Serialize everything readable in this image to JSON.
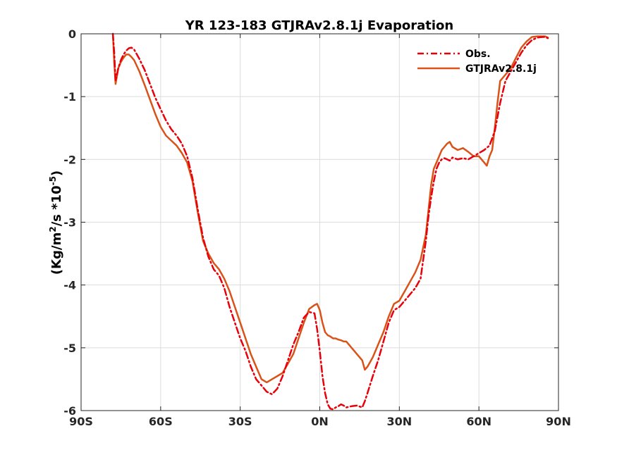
{
  "chart_data": {
    "type": "line",
    "title": "YR 123-183 GTJRAv2.8.1j Evaporation",
    "ylabel": {
      "prefix": "(Kg/m",
      "sup1": "2",
      "middle": "/s *10",
      "sup2": "-5",
      "suffix": ")"
    },
    "xlabel": "",
    "xlim": [
      -90,
      90
    ],
    "ylim": [
      -6,
      0
    ],
    "xticks": [
      -90,
      -60,
      -30,
      0,
      30,
      60,
      90
    ],
    "xtick_labels": [
      "90S",
      "60S",
      "30S",
      "0N",
      "30N",
      "60N",
      "90N"
    ],
    "yticks": [
      0,
      -1,
      -2,
      -3,
      -4,
      -5,
      -6
    ],
    "ytick_labels": [
      "0",
      "-1",
      "-2",
      "-3",
      "-4",
      "-5",
      "-6"
    ],
    "grid": true,
    "legend_position": "top-right",
    "series": [
      {
        "name": "Obs.",
        "color": "#e8000b",
        "style": "dash-dot",
        "x": [
          -78,
          -77.5,
          -77,
          -76,
          -75,
          -74,
          -73,
          -72,
          -71,
          -70,
          -68,
          -66,
          -64,
          -62,
          -60,
          -58,
          -56,
          -54,
          -52,
          -50,
          -48,
          -46,
          -44,
          -42,
          -40,
          -38,
          -36,
          -34,
          -32,
          -30,
          -28,
          -26,
          -24,
          -22,
          -20,
          -18,
          -16,
          -14,
          -12,
          -10,
          -8,
          -6,
          -4,
          -2,
          -1,
          0,
          1,
          2,
          3,
          4,
          5,
          6,
          7,
          8,
          9,
          10,
          12,
          14,
          16,
          17,
          18,
          20,
          22,
          24,
          26,
          28,
          30,
          32,
          34,
          36,
          38,
          40,
          41,
          42,
          43,
          44,
          45,
          46,
          47,
          48,
          49,
          50,
          52,
          54,
          56,
          58,
          60,
          62,
          64,
          66,
          68,
          70,
          72,
          74,
          76,
          78,
          80,
          82,
          84,
          85,
          86
        ],
        "y": [
          0,
          -0.3,
          -0.75,
          -0.55,
          -0.42,
          -0.33,
          -0.27,
          -0.23,
          -0.22,
          -0.25,
          -0.4,
          -0.58,
          -0.8,
          -1.02,
          -1.2,
          -1.38,
          -1.52,
          -1.62,
          -1.75,
          -1.95,
          -2.3,
          -2.8,
          -3.25,
          -3.55,
          -3.75,
          -3.85,
          -4.05,
          -4.35,
          -4.6,
          -4.85,
          -5.05,
          -5.3,
          -5.5,
          -5.6,
          -5.7,
          -5.74,
          -5.65,
          -5.45,
          -5.2,
          -4.95,
          -4.75,
          -4.52,
          -4.43,
          -4.45,
          -4.7,
          -5.05,
          -5.45,
          -5.72,
          -5.9,
          -5.97,
          -5.98,
          -5.95,
          -5.93,
          -5.9,
          -5.92,
          -5.95,
          -5.93,
          -5.92,
          -5.95,
          -5.85,
          -5.72,
          -5.45,
          -5.2,
          -4.9,
          -4.6,
          -4.4,
          -4.35,
          -4.25,
          -4.15,
          -4.05,
          -3.9,
          -3.3,
          -2.9,
          -2.6,
          -2.35,
          -2.15,
          -2.05,
          -2.0,
          -1.98,
          -2.0,
          -2.02,
          -1.97,
          -2.0,
          -1.98,
          -2.0,
          -1.95,
          -1.9,
          -1.85,
          -1.78,
          -1.55,
          -1.1,
          -0.75,
          -0.6,
          -0.45,
          -0.3,
          -0.18,
          -0.1,
          -0.06,
          -0.05,
          -0.05,
          -0.07
        ]
      },
      {
        "name": "GTJRAv2.8.1j",
        "color": "#d95319",
        "style": "solid",
        "x": [
          -78,
          -77.5,
          -77,
          -76,
          -75,
          -74,
          -73,
          -72,
          -71,
          -70,
          -68,
          -66,
          -64,
          -62,
          -60,
          -58,
          -56,
          -54,
          -52,
          -50,
          -48,
          -46,
          -44,
          -42,
          -40,
          -38,
          -36,
          -34,
          -32,
          -30,
          -28,
          -26,
          -24,
          -22,
          -20,
          -18,
          -16,
          -14,
          -12,
          -10,
          -8,
          -6,
          -4,
          -2,
          -1,
          0,
          1,
          2,
          3,
          4,
          5,
          6,
          7,
          8,
          9,
          10,
          12,
          14,
          16,
          17,
          18,
          20,
          22,
          24,
          26,
          28,
          30,
          32,
          34,
          36,
          38,
          40,
          41,
          42,
          43,
          44,
          45,
          46,
          47,
          48,
          49,
          50,
          52,
          54,
          56,
          58,
          60,
          62,
          63,
          64,
          65,
          66,
          67,
          68,
          70,
          72,
          74,
          76,
          78,
          80,
          82,
          84,
          85,
          86
        ],
        "y": [
          0,
          -0.45,
          -0.8,
          -0.55,
          -0.45,
          -0.38,
          -0.33,
          -0.33,
          -0.37,
          -0.42,
          -0.6,
          -0.82,
          -1.05,
          -1.28,
          -1.48,
          -1.62,
          -1.7,
          -1.78,
          -1.9,
          -2.05,
          -2.35,
          -2.85,
          -3.3,
          -3.5,
          -3.65,
          -3.75,
          -3.9,
          -4.1,
          -4.35,
          -4.6,
          -4.85,
          -5.1,
          -5.3,
          -5.5,
          -5.55,
          -5.5,
          -5.45,
          -5.4,
          -5.25,
          -5.1,
          -4.85,
          -4.6,
          -4.38,
          -4.32,
          -4.3,
          -4.4,
          -4.6,
          -4.75,
          -4.8,
          -4.82,
          -4.85,
          -4.85,
          -4.87,
          -4.88,
          -4.9,
          -4.9,
          -5.0,
          -5.1,
          -5.2,
          -5.35,
          -5.3,
          -5.15,
          -4.95,
          -4.75,
          -4.5,
          -4.3,
          -4.25,
          -4.1,
          -3.95,
          -3.8,
          -3.6,
          -3.2,
          -2.8,
          -2.4,
          -2.15,
          -2.05,
          -1.95,
          -1.85,
          -1.8,
          -1.75,
          -1.72,
          -1.8,
          -1.85,
          -1.82,
          -1.88,
          -1.95,
          -1.95,
          -2.05,
          -2.1,
          -1.95,
          -1.85,
          -1.5,
          -1.1,
          -0.75,
          -0.65,
          -0.55,
          -0.38,
          -0.22,
          -0.12,
          -0.05,
          -0.04,
          -0.04,
          -0.04,
          -0.06
        ]
      }
    ]
  }
}
